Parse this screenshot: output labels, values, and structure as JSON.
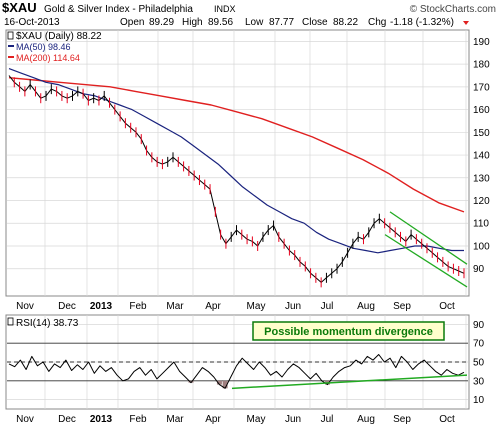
{
  "header": {
    "symbol": "$XAU",
    "name": "Gold & Silver Index - Philadelphia",
    "exchange": "INDX",
    "watermark": "© StockCharts.com",
    "date": "16-Oct-2013",
    "open_label": "Open",
    "open": "89.29",
    "high_label": "High",
    "high": "89.56",
    "low_label": "Low",
    "low": "87.77",
    "close_label": "Close",
    "close": "88.22",
    "chg_label": "Chg",
    "chg": "-1.18 (-1.32%)"
  },
  "legend": {
    "price": "$XAU (Daily) 88.22",
    "ma50": "MA(50) 98.46",
    "ma200": "MA(200) 114.64"
  },
  "rsi_panel": {
    "label": "RSI(14) 38.73",
    "annotation": "Possible momentum divergence"
  },
  "colors": {
    "price": "#000000",
    "down_candle": "#e8001c",
    "ma50": "#1a237e",
    "ma200": "#e02020",
    "channel": "#22aa22",
    "annotation_text": "#0a7a0a",
    "annotation_bg": "#ffffcc",
    "grid": "#d8d8d8",
    "overbought_fill": "#7070a8",
    "oversold_fill": "#a08080"
  },
  "chart_data": [
    {
      "type": "line",
      "title": "$XAU Gold & Silver Index - Philadelphia",
      "x_tick_labels": [
        "Nov",
        "Dec",
        "2013",
        "Feb",
        "Mar",
        "Apr",
        "May",
        "Jun",
        "Jul",
        "Aug",
        "Sep",
        "Oct"
      ],
      "y_ticks": [
        90,
        100,
        110,
        120,
        130,
        140,
        150,
        160,
        170,
        180,
        190
      ],
      "ylim": [
        78,
        195
      ],
      "grid": true,
      "series": [
        {
          "name": "$XAU (Daily)",
          "values": [
            175,
            172,
            170,
            168,
            171,
            168,
            165,
            166,
            169,
            168,
            166,
            165,
            166,
            168,
            167,
            164,
            165,
            164,
            166,
            163,
            160,
            157,
            154,
            152,
            150,
            147,
            142,
            139,
            137,
            136,
            137,
            139,
            137,
            135,
            133,
            131,
            129,
            127,
            125,
            115,
            105,
            101,
            104,
            107,
            105,
            103,
            102,
            100,
            104,
            107,
            109,
            104,
            101,
            98,
            96,
            93,
            91,
            88,
            86,
            84,
            86,
            88,
            90,
            93,
            97,
            101,
            104,
            103,
            106,
            110,
            112,
            110,
            108,
            106,
            104,
            102,
            105,
            103,
            101,
            99,
            97,
            95,
            93,
            91,
            90,
            89,
            88
          ]
        },
        {
          "name": "MA(50)",
          "values": [
            178,
            176,
            174,
            172,
            171,
            169,
            167,
            166,
            164,
            162,
            160,
            157,
            154,
            151,
            148,
            144,
            140,
            136,
            131,
            126,
            122,
            118,
            115,
            112,
            110,
            106,
            103,
            101,
            99,
            98,
            97,
            98,
            99,
            100,
            100,
            99,
            98,
            98
          ]
        },
        {
          "name": "MA(200)",
          "values": [
            174,
            173,
            172,
            171,
            170,
            168,
            166,
            164,
            162,
            159,
            156,
            152,
            148,
            143,
            138,
            132,
            125,
            119,
            115
          ]
        }
      ],
      "channel": {
        "upper": [
          [
            115,
            90
          ],
          [
            92,
            128
          ]
        ],
        "lower": [
          [
            105,
            100
          ],
          [
            82,
            137
          ]
        ]
      }
    },
    {
      "type": "line",
      "title": "RSI(14)",
      "y_ticks": [
        10,
        30,
        50,
        70,
        90
      ],
      "ylim": [
        0,
        100
      ],
      "reference_lines": [
        30,
        50,
        70
      ],
      "series": [
        {
          "name": "RSI(14)",
          "values": [
            48,
            45,
            52,
            42,
            56,
            46,
            50,
            40,
            48,
            44,
            52,
            41,
            47,
            42,
            50,
            38,
            46,
            40,
            44,
            36,
            30,
            32,
            40,
            44,
            36,
            42,
            32,
            38,
            44,
            50,
            40,
            34,
            28,
            36,
            44,
            40,
            34,
            26,
            22,
            34,
            46,
            54,
            48,
            42,
            50,
            44,
            36,
            40,
            34,
            42,
            48,
            44,
            38,
            32,
            38,
            30,
            26,
            34,
            40,
            44,
            46,
            52,
            48,
            56,
            52,
            58,
            50,
            54,
            44,
            56,
            50,
            42,
            48,
            52,
            46,
            40,
            36,
            42,
            38,
            36,
            39
          ]
        }
      ],
      "divergence_line": [
        [
          22,
          36
        ],
        [
          38,
          40
        ]
      ]
    }
  ]
}
